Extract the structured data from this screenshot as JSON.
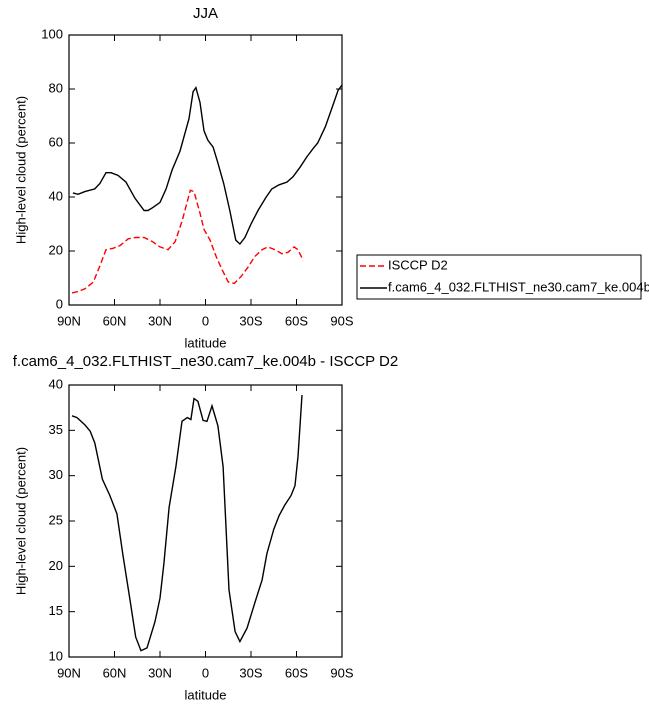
{
  "chart_data": [
    {
      "type": "line",
      "title": "JJA",
      "xlabel": "latitude",
      "ylabel": "High-level cloud (percent)",
      "xlim": [
        90,
        -90
      ],
      "xticks": [
        {
          "value": 90,
          "label": "90N"
        },
        {
          "value": 60,
          "label": "60N"
        },
        {
          "value": 30,
          "label": "30N"
        },
        0,
        {
          "value": -30,
          "label": "30S"
        },
        {
          "value": -60,
          "label": "60S"
        },
        {
          "value": -90,
          "label": "90S"
        }
      ],
      "ylim": [
        0,
        100
      ],
      "yticks": [
        0,
        20,
        40,
        60,
        80,
        100
      ],
      "legend": "outside-right",
      "series": [
        {
          "name": "ISCCP D2",
          "color": "#ff0000",
          "dashed": true,
          "x": [
            88,
            84,
            79.5,
            74,
            69.6,
            65.6,
            61,
            56.4,
            51,
            46,
            40.5,
            35,
            30,
            24.7,
            20,
            15.5,
            10,
            7.6,
            3.6,
            1,
            -3,
            -7,
            -11,
            -15,
            -19,
            -23.4,
            -28,
            -32.6,
            -37.3,
            -41,
            -45.8,
            -50.4,
            -54.4,
            -58.4,
            -61,
            -64.4
          ],
          "values": [
            4.5,
            5,
            6,
            8.5,
            14.5,
            20.5,
            21,
            22,
            24.5,
            25,
            25,
            23.5,
            21.5,
            20.5,
            23.5,
            31,
            42.5,
            42,
            34,
            28,
            24,
            18,
            13,
            8.5,
            8,
            10.5,
            14,
            18,
            20.5,
            21.5,
            20.5,
            19,
            19.5,
            21.5,
            20.5,
            16.5
          ]
        },
        {
          "name": "f.cam6_4_032.FLTHIST_ne30.cam7_ke.004b",
          "color": "#000000",
          "dashed": false,
          "x": [
            87.4,
            84,
            79.5,
            73,
            69.6,
            65.6,
            62.3,
            57.7,
            52.4,
            46.5,
            40.5,
            38,
            35,
            30,
            26,
            22,
            16.8,
            10.9,
            8.2,
            6.3,
            3.6,
            1,
            -1.6,
            -5,
            -8,
            -12,
            -16,
            -20,
            -22.7,
            -26,
            -30,
            -34.6,
            -40,
            -43.8,
            -48.5,
            -53.7,
            -57.7,
            -62.3,
            -67,
            -71,
            -74,
            -79,
            -83.4,
            -87.4,
            -90
          ],
          "values": [
            41.5,
            41,
            42,
            43,
            45,
            49,
            49,
            48,
            45.5,
            39.5,
            35,
            35,
            36,
            38,
            43,
            50,
            57,
            69,
            79,
            80.5,
            75,
            64.5,
            61,
            58.5,
            53,
            45,
            35,
            24,
            22.6,
            25,
            30,
            35,
            40,
            43,
            44.5,
            45.5,
            47.5,
            51,
            55,
            58,
            60,
            66,
            73,
            79.5,
            81.5
          ]
        }
      ]
    },
    {
      "type": "line",
      "title": "f.cam6_4_032.FLTHIST_ne30.cam7_ke.004b - ISCCP D2",
      "xlabel": "latitude",
      "ylabel": "High-level cloud (percent)",
      "xlim": [
        90,
        -90
      ],
      "xticks": [
        {
          "value": 90,
          "label": "90N"
        },
        {
          "value": 60,
          "label": "60N"
        },
        {
          "value": 30,
          "label": "30N"
        },
        0,
        {
          "value": -30,
          "label": "30S"
        },
        {
          "value": -60,
          "label": "60S"
        },
        {
          "value": -90,
          "label": "90S"
        }
      ],
      "ylim": [
        10,
        40
      ],
      "yticks": [
        10,
        15,
        20,
        25,
        30,
        35,
        40
      ],
      "series": [
        {
          "color": "#000000",
          "dashed": false,
          "x": [
            88,
            84.7,
            79.5,
            76,
            73,
            68,
            63,
            58.4,
            54.4,
            49.8,
            46,
            42.5,
            38.6,
            33.3,
            30,
            27.4,
            24,
            19.5,
            15.5,
            12,
            9.6,
            7.6,
            5,
            1.6,
            -1,
            -4.3,
            -8.2,
            -11.6,
            -15.5,
            -19.5,
            -22.7,
            -27.4,
            -32.6,
            -37.3,
            -40.5,
            -45,
            -48.5,
            -52.4,
            -56.4,
            -59,
            -61,
            -63.6
          ],
          "values": [
            36.6,
            36.4,
            35.6,
            34.9,
            33.6,
            29.6,
            27.8,
            25.8,
            21.2,
            16.3,
            12.2,
            10.7,
            11,
            13.9,
            16.5,
            20.3,
            26.5,
            31,
            36,
            36.4,
            36.2,
            38.5,
            38.2,
            36.1,
            36,
            37.7,
            35.5,
            31,
            17.4,
            12.8,
            11.7,
            13.2,
            16,
            18.5,
            21.4,
            24.1,
            25.6,
            26.8,
            27.8,
            28.9,
            32.1,
            38.9
          ]
        }
      ]
    }
  ]
}
